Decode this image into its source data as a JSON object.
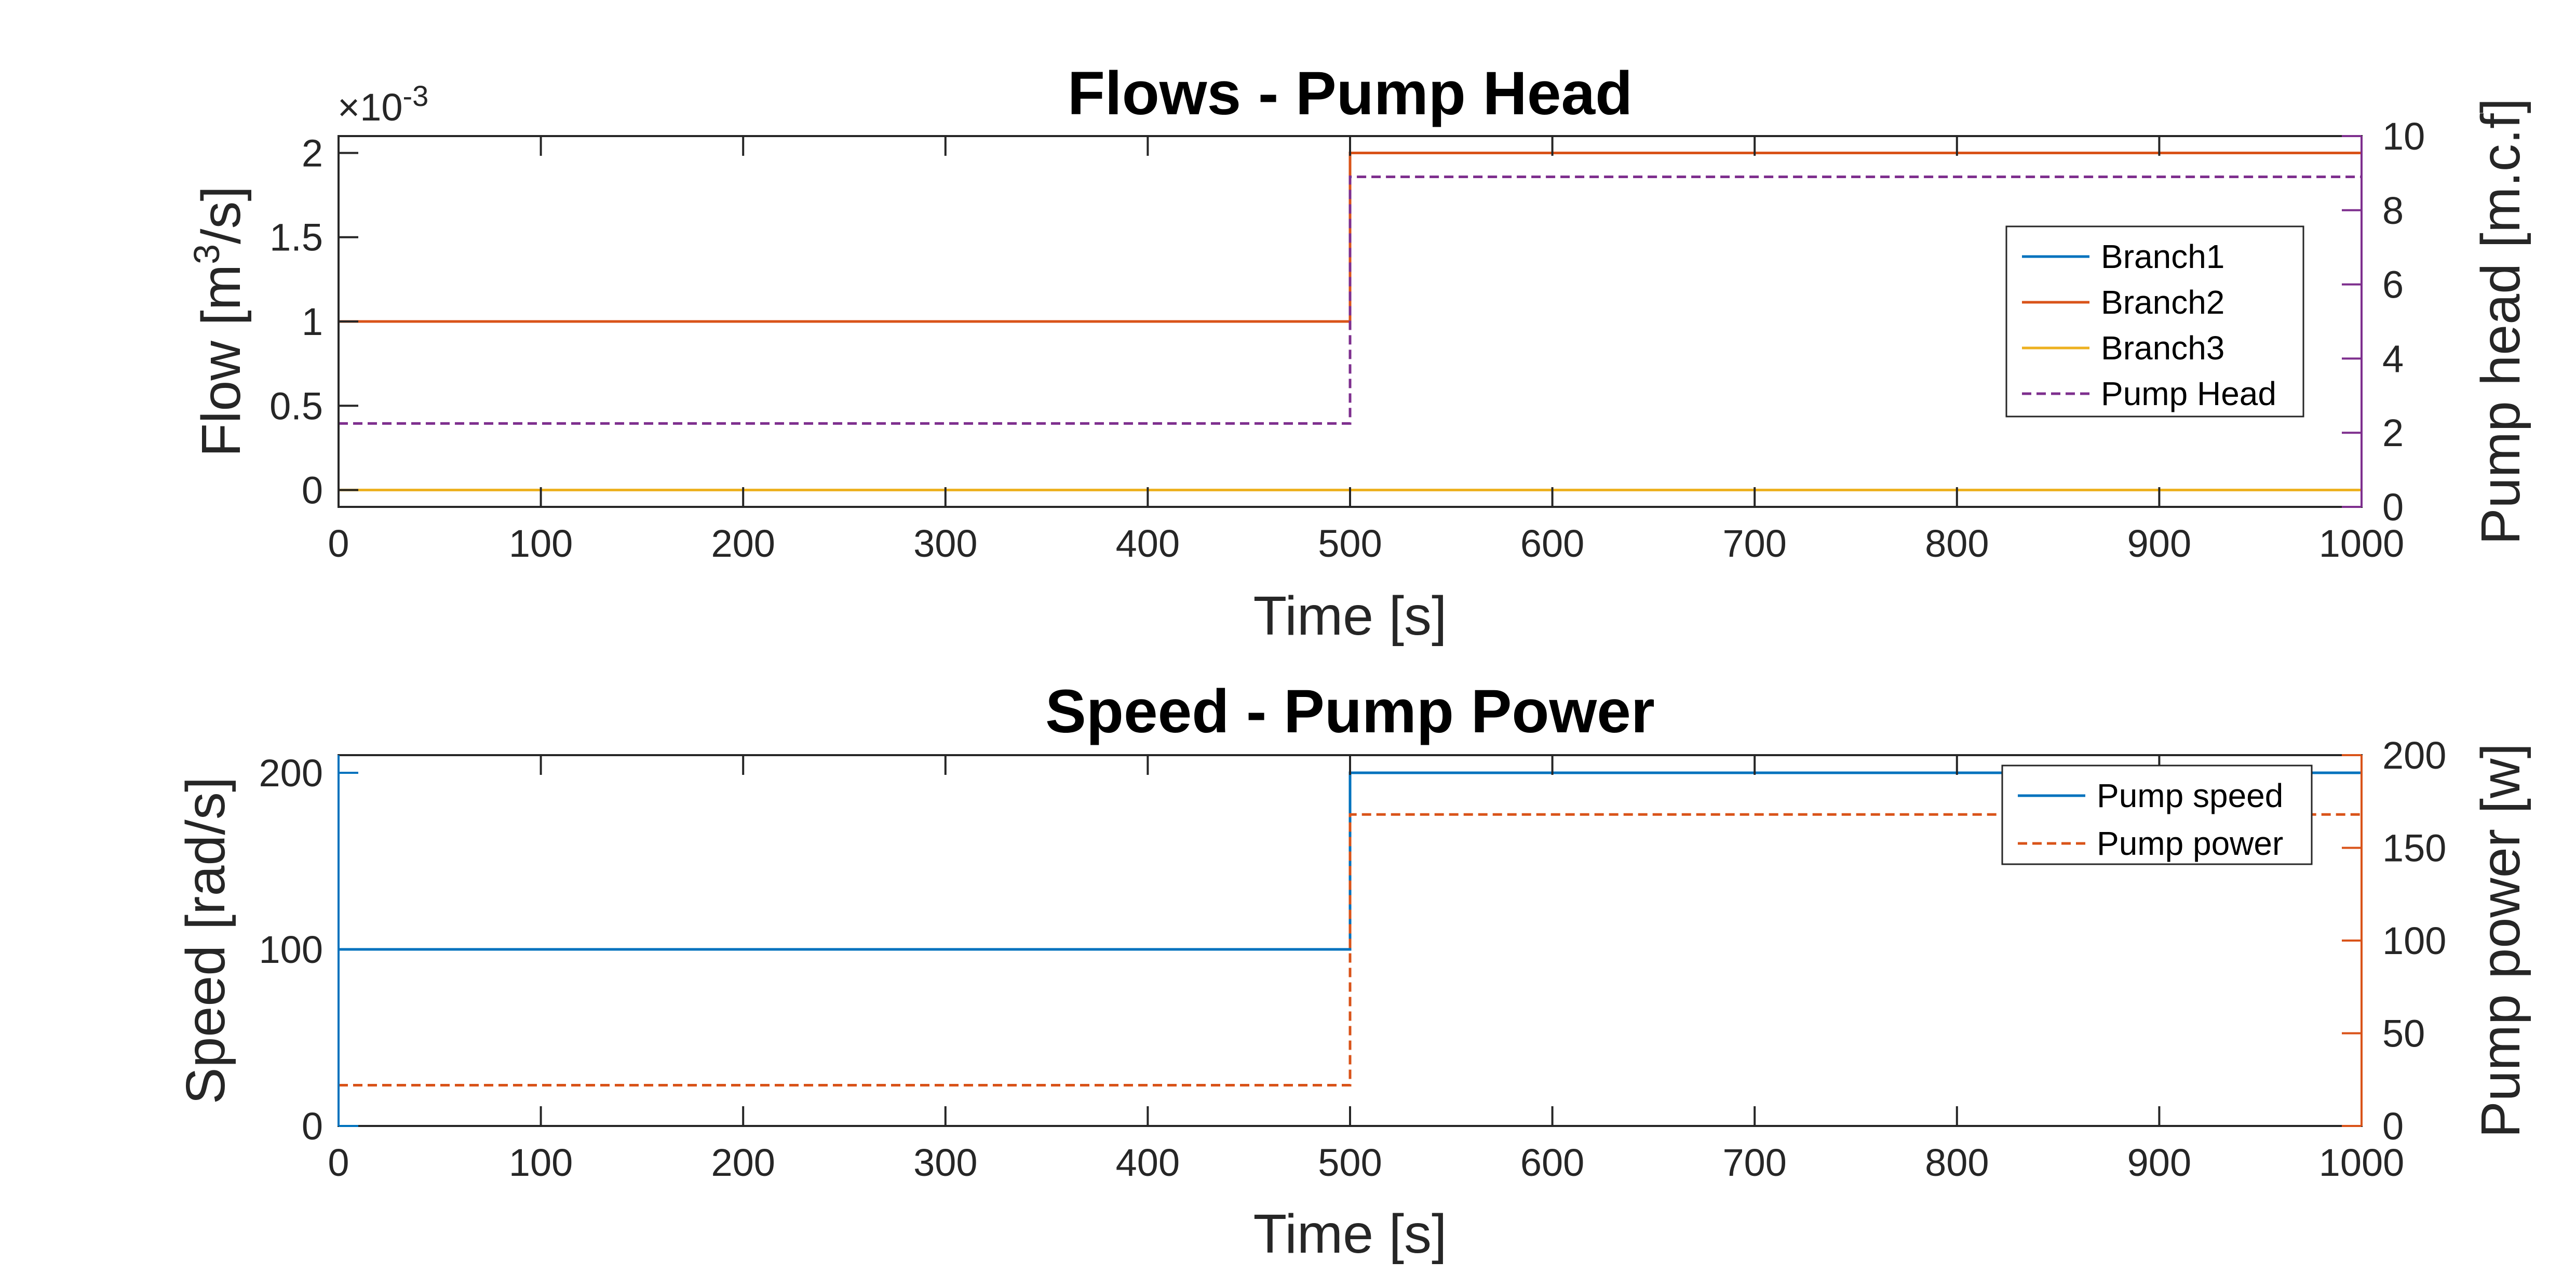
{
  "chart_data": [
    {
      "type": "line",
      "title": "Flows - Pump Head",
      "xlabel": "Time [s]",
      "ylabel": "Flow [m³/s]",
      "ylabel_parts": {
        "pre": "Flow [m",
        "sup": "3",
        "post": "/s]"
      },
      "y_exponent_label": {
        "base": "×10",
        "exp": "-3"
      },
      "y2label": "Pump head [m.c.f]",
      "xlim": [
        0,
        1000
      ],
      "ylim": [
        -0.1,
        2.1
      ],
      "y2lim": [
        0,
        10
      ],
      "xticks": [
        0,
        100,
        200,
        300,
        400,
        500,
        600,
        700,
        800,
        900,
        1000
      ],
      "xtick_labels": [
        "0",
        "100",
        "200",
        "300",
        "400",
        "500",
        "600",
        "700",
        "800",
        "900",
        "1000"
      ],
      "yticks": [
        0,
        0.5,
        1,
        1.5,
        2
      ],
      "ytick_labels": [
        "0",
        "0.5",
        "1",
        "1.5",
        "2"
      ],
      "y2ticks": [
        0,
        2,
        4,
        6,
        8,
        10
      ],
      "y2tick_labels": [
        "0",
        "2",
        "4",
        "6",
        "8",
        "10"
      ],
      "grid": false,
      "legend_position": "right",
      "series": [
        {
          "name": "Branch1",
          "axis": "left",
          "style": "solid",
          "color": "#0072BD",
          "x": [
            0,
            500,
            500,
            1000
          ],
          "values": [
            1.0,
            1.0,
            2.0,
            2.0
          ]
        },
        {
          "name": "Branch2",
          "axis": "left",
          "style": "solid",
          "color": "#D95319",
          "x": [
            0,
            500,
            500,
            1000
          ],
          "values": [
            1.0,
            1.0,
            2.0,
            2.0
          ]
        },
        {
          "name": "Branch3",
          "axis": "left",
          "style": "solid",
          "color": "#EDB120",
          "x": [
            0,
            500,
            500,
            1000
          ],
          "values": [
            0,
            0,
            0,
            0
          ]
        },
        {
          "name": "Pump Head",
          "axis": "right",
          "style": "dashed",
          "color": "#7E2F8E",
          "x": [
            0,
            500,
            500,
            1000
          ],
          "values": [
            2.25,
            2.25,
            8.9,
            8.9
          ]
        }
      ]
    },
    {
      "type": "line",
      "title": "Speed - Pump Power",
      "xlabel": "Time [s]",
      "ylabel": "Speed [rad/s]",
      "y2label": "Pump power [w]",
      "xlim": [
        0,
        1000
      ],
      "ylim": [
        0,
        210
      ],
      "y2lim": [
        0,
        200
      ],
      "xticks": [
        0,
        100,
        200,
        300,
        400,
        500,
        600,
        700,
        800,
        900,
        1000
      ],
      "xtick_labels": [
        "0",
        "100",
        "200",
        "300",
        "400",
        "500",
        "600",
        "700",
        "800",
        "900",
        "1000"
      ],
      "yticks": [
        0,
        100,
        200
      ],
      "ytick_labels": [
        "0",
        "100",
        "200"
      ],
      "y2ticks": [
        0,
        50,
        100,
        150,
        200
      ],
      "y2tick_labels": [
        "0",
        "50",
        "100",
        "150",
        "200"
      ],
      "grid": false,
      "legend_position": "top-right",
      "series": [
        {
          "name": "Pump speed",
          "axis": "left",
          "style": "solid",
          "color": "#0072BD",
          "x": [
            0,
            500,
            500,
            1000
          ],
          "values": [
            100,
            100,
            200,
            200
          ]
        },
        {
          "name": "Pump power",
          "axis": "right",
          "style": "dashed",
          "color": "#D95319",
          "x": [
            0,
            500,
            500,
            1000
          ],
          "values": [
            22,
            22,
            168,
            168
          ]
        }
      ]
    }
  ],
  "colors": {
    "axis": "#262626",
    "left_axis_2": "#0072BD",
    "right_axis_1": "#7E2F8E",
    "right_axis_2": "#D95319"
  }
}
